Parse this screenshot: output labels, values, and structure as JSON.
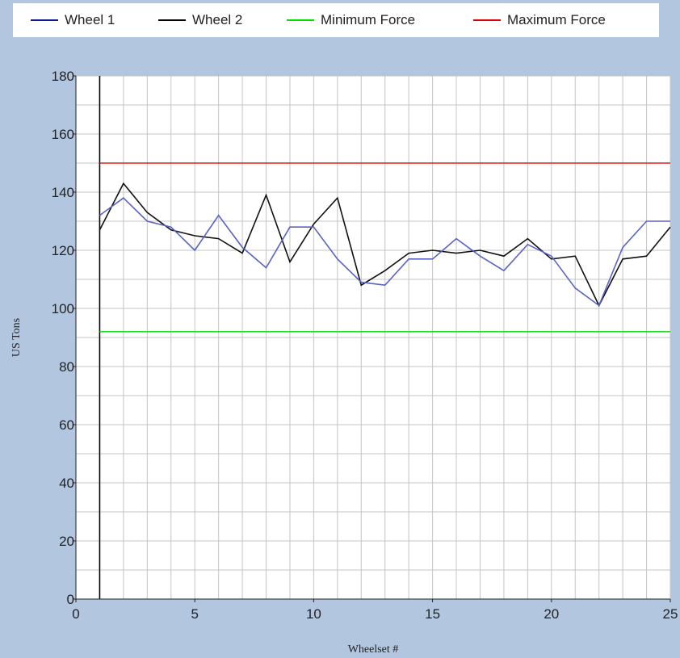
{
  "chart_data": {
    "type": "line",
    "xlabel": "Wheelset #",
    "ylabel": "US Tons",
    "xlim": [
      0,
      25
    ],
    "ylim": [
      0,
      180
    ],
    "xticks": [
      0,
      5,
      10,
      15,
      20,
      25
    ],
    "yticks": [
      0,
      20,
      40,
      60,
      80,
      100,
      120,
      140,
      160,
      180
    ],
    "x_minor_step": 1,
    "y_minor_step": 10,
    "grid": true,
    "legend_position": "top",
    "x": [
      1,
      2,
      3,
      4,
      5,
      6,
      7,
      8,
      9,
      10,
      11,
      12,
      13,
      14,
      15,
      16,
      17,
      18,
      19,
      20,
      21,
      22,
      23,
      24,
      25
    ],
    "series": [
      {
        "name": "Wheel 1",
        "color": "#0a1a8c",
        "line_color": "#5a62c4",
        "values": [
          132,
          138,
          130,
          128,
          120,
          132,
          121,
          114,
          128,
          128,
          117,
          109,
          108,
          117,
          117,
          124,
          118,
          113,
          122,
          118,
          107,
          101,
          121,
          130,
          130
        ]
      },
      {
        "name": "Wheel 2",
        "color": "#000000",
        "line_color": "#111111",
        "values": [
          127,
          143,
          133,
          127,
          125,
          124,
          119,
          139,
          116,
          129,
          138,
          108,
          113,
          119,
          120,
          119,
          120,
          118,
          124,
          117,
          118,
          101,
          117,
          118,
          128
        ]
      },
      {
        "name": "Minimum Force",
        "color": "#00dd00",
        "line_color": "#22dd22",
        "values": [
          92,
          92,
          92,
          92,
          92,
          92,
          92,
          92,
          92,
          92,
          92,
          92,
          92,
          92,
          92,
          92,
          92,
          92,
          92,
          92,
          92,
          92,
          92,
          92,
          92
        ]
      },
      {
        "name": "Maximum Force",
        "color": "#dd0000",
        "line_color": "#dd2222",
        "values": [
          150,
          150,
          150,
          150,
          150,
          150,
          150,
          150,
          150,
          150,
          150,
          150,
          150,
          150,
          150,
          150,
          150,
          150,
          150,
          150,
          150,
          150,
          150,
          150,
          150
        ]
      }
    ]
  }
}
